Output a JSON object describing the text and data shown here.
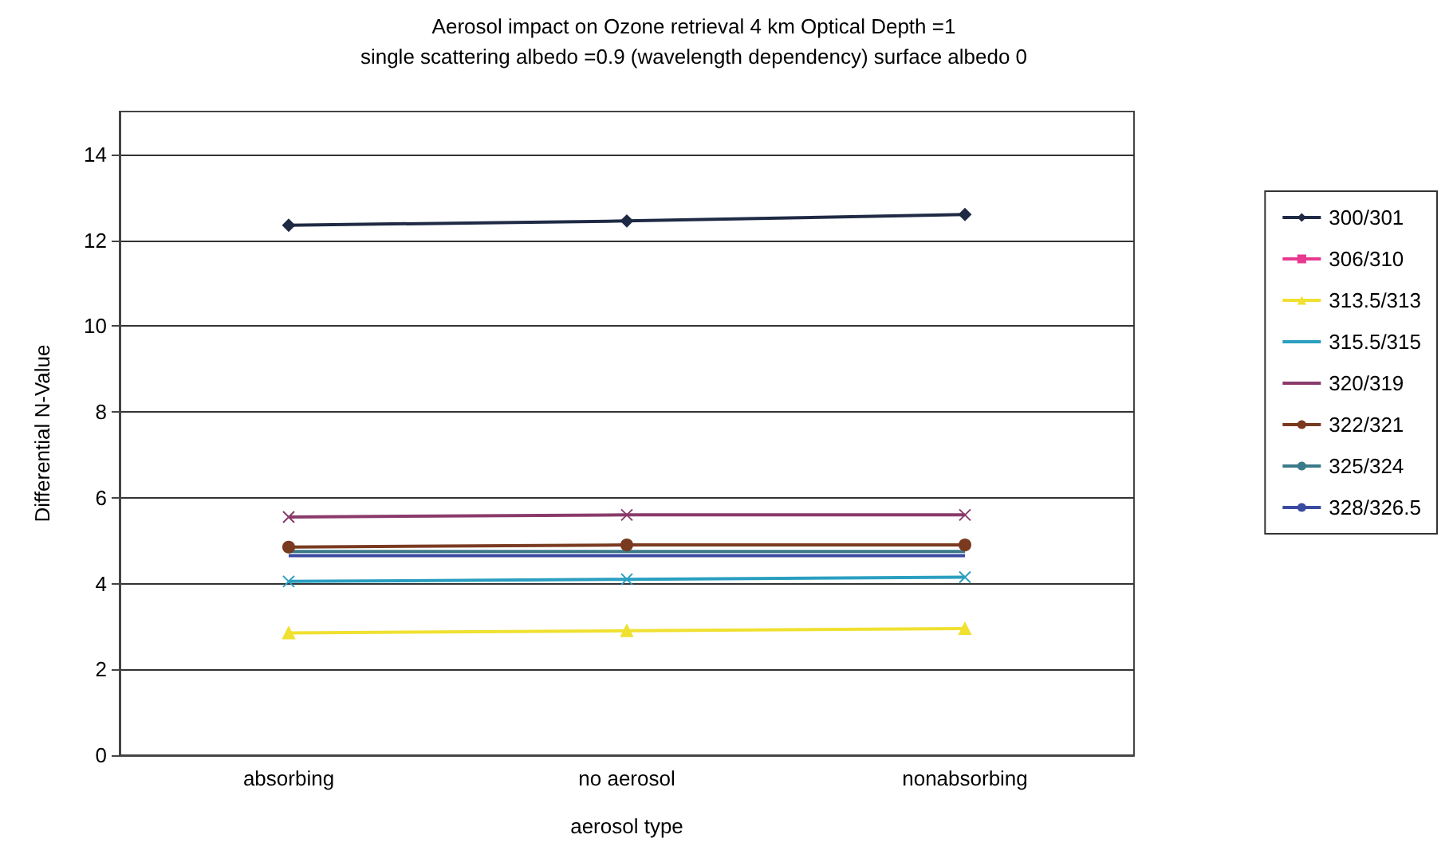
{
  "chart_data": {
    "type": "line",
    "title": "Aerosol impact on Ozone retrieval 4 km Optical Depth =1",
    "subtitle": "single scattering albedo =0.9 (wavelength dependency) surface albedo 0",
    "xlabel": "aerosol type",
    "ylabel": "Differential N-Value",
    "categories": [
      "absorbing",
      "no aerosol",
      "nonabsorbing"
    ],
    "series": [
      {
        "name": "300/301",
        "color": "#1f2a44",
        "marker": "diamond",
        "values": [
          12.35,
          12.45,
          12.6
        ]
      },
      {
        "name": "306/310",
        "color": "#e8388f",
        "marker": "square",
        "values": [
          null,
          null,
          null
        ]
      },
      {
        "name": "313.5/313",
        "color": "#f0e030",
        "marker": "triangle",
        "values": [
          2.85,
          2.9,
          2.95
        ]
      },
      {
        "name": "315.5/315",
        "color": "#2a9fc0",
        "marker": "cross",
        "values": [
          4.05,
          4.1,
          4.15
        ]
      },
      {
        "name": "320/319",
        "color": "#8a3a6a",
        "marker": "cross",
        "values": [
          5.55,
          5.6,
          5.6
        ]
      },
      {
        "name": "322/321",
        "color": "#7a3a20",
        "marker": "circle",
        "values": [
          4.85,
          4.9,
          4.9
        ]
      },
      {
        "name": "325/324",
        "color": "#3a7a8a",
        "marker": "none",
        "values": [
          4.75,
          4.75,
          4.75
        ]
      },
      {
        "name": "328/326.5",
        "color": "#3a4aa0",
        "marker": "none",
        "values": [
          4.65,
          4.65,
          4.65
        ]
      }
    ],
    "ylim": [
      0,
      15
    ],
    "yticks": [
      0,
      2,
      4,
      6,
      8,
      10,
      12,
      14
    ],
    "grid": "y",
    "legend": "right"
  }
}
